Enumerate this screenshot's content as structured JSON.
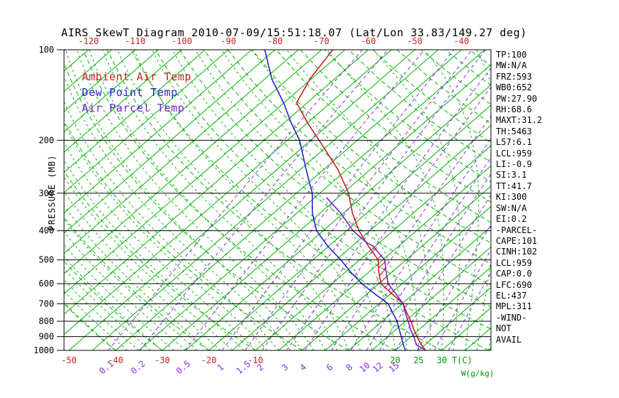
{
  "window": {
    "title": "AIRS SkewT Diagram 2010-07-09/15:51:18.07 (Lat/Lon 33.83/149.27 deg)"
  },
  "legend": {
    "items": [
      {
        "label": "Ambient Air Temp",
        "color": "#cc2020"
      },
      {
        "label": "Dew Point Temp",
        "color": "#2323cc"
      },
      {
        "label": "Air Parcel Temp",
        "color": "#7a1fcc"
      }
    ]
  },
  "axes": {
    "pressure_label": "PRESSURE (MB)",
    "pressure_ticks": [
      100,
      200,
      300,
      400,
      500,
      600,
      700,
      800,
      900,
      1000
    ],
    "top_temp_ticks_c": [
      -120,
      -110,
      -100,
      -90,
      -80,
      -70,
      -60,
      -50,
      -40
    ],
    "bottom_temp_ticks_c": [
      -50,
      -40,
      -30,
      -20,
      -10
    ],
    "bottom_warm_ticks_c": [
      20,
      25,
      30
    ],
    "mixing_ratio_ticks_gkg": [
      0.1,
      0.2,
      0.5,
      1,
      1.5,
      2,
      3,
      4,
      6,
      8,
      10,
      12,
      15
    ],
    "temp_unit_label": "T(C)",
    "mixing_unit_label": "W(g/kg)"
  },
  "stats_panel": {
    "lines": [
      "TP:100",
      "MW:N/A",
      "FRZ:593",
      "WB0:652",
      "PW:27.90",
      "RH:68.6",
      "MAXT:31.2",
      "TH:5463",
      "L57:6.1",
      "LCL:959",
      "LI:-0.9",
      "SI:3.1",
      "TT:41.7",
      "KI:300",
      "SW:N/A",
      "EI:0.2",
      "-PARCEL-",
      "CAPE:101",
      "CINH:102",
      "LCL:959",
      "CAP:0.0",
      "LFC:690",
      "EL:437",
      "MPL:311",
      "-WIND-",
      "NOT",
      "AVAIL"
    ]
  },
  "chart_data": {
    "type": "line",
    "title": "AIRS SkewT Diagram 2010-07-09/15:51:18.07 (Lat/Lon 33.83/149.27 deg)",
    "x_axis": {
      "label": "T(C)",
      "skewed": true,
      "bottom_range_c": [
        -51,
        41
      ]
    },
    "y_axis": {
      "label": "PRESSURE (MB)",
      "scale": "log",
      "range_mb": [
        100,
        1000
      ]
    },
    "grid": {
      "isotherm_step_c": 5,
      "isotherm_range_c": [
        -125,
        45
      ],
      "dry_adiabat_theta_c": [
        -40,
        190,
        10
      ],
      "moist_adiabat_t0_c": [
        -40,
        40,
        2.5
      ],
      "isotherm_color": "#00b400",
      "mixing_ratio_color": "#8a2be2",
      "mixing_ratio_lines_gkg": [
        0.1,
        0.2,
        0.5,
        1,
        1.5,
        2,
        3,
        4,
        6,
        8,
        10,
        12,
        15,
        20,
        25,
        30
      ]
    },
    "series": [
      {
        "name": "Ambient Air Temp",
        "color": "#cc2020",
        "points_p_mb_t_c": [
          [
            1000,
            26.5
          ],
          [
            950,
            23.8
          ],
          [
            900,
            21.3
          ],
          [
            850,
            18.7
          ],
          [
            800,
            16.2
          ],
          [
            750,
            13.2
          ],
          [
            700,
            10.2
          ],
          [
            650,
            5.5
          ],
          [
            600,
            0.5
          ],
          [
            550,
            -2.8
          ],
          [
            500,
            -6.0
          ],
          [
            450,
            -11.5
          ],
          [
            400,
            -17.3
          ],
          [
            350,
            -23.0
          ],
          [
            300,
            -28.8
          ],
          [
            250,
            -37.0
          ],
          [
            200,
            -48.2
          ],
          [
            175,
            -55.0
          ],
          [
            150,
            -62.3
          ],
          [
            125,
            -65.3
          ],
          [
            100,
            -67.6
          ]
        ]
      },
      {
        "name": "Dew Point Temp",
        "color": "#2323cc",
        "points_p_mb_t_c": [
          [
            1000,
            22.2
          ],
          [
            950,
            20.0
          ],
          [
            900,
            17.9
          ],
          [
            850,
            15.6
          ],
          [
            800,
            13.2
          ],
          [
            750,
            10.2
          ],
          [
            700,
            7.0
          ],
          [
            650,
            1.8
          ],
          [
            600,
            -3.6
          ],
          [
            550,
            -8.8
          ],
          [
            500,
            -14.0
          ],
          [
            450,
            -20.2
          ],
          [
            400,
            -26.4
          ],
          [
            350,
            -31.6
          ],
          [
            300,
            -36.6
          ],
          [
            250,
            -43.8
          ],
          [
            200,
            -52.4
          ],
          [
            175,
            -58.5
          ],
          [
            150,
            -65.1
          ],
          [
            125,
            -73.5
          ],
          [
            100,
            -82.2
          ]
        ]
      },
      {
        "name": "Air Parcel Temp",
        "color": "#7a1fcc",
        "points_p_mb_t_c": [
          [
            1000,
            26.5
          ],
          [
            959,
            23.2
          ],
          [
            900,
            20.6
          ],
          [
            850,
            18.0
          ],
          [
            800,
            15.6
          ],
          [
            750,
            12.9
          ],
          [
            700,
            10.2
          ],
          [
            650,
            6.3
          ],
          [
            600,
            2.0
          ],
          [
            550,
            -1.2
          ],
          [
            500,
            -4.6
          ],
          [
            450,
            -10.5
          ],
          [
            437,
            -12.9
          ],
          [
            400,
            -18.6
          ],
          [
            350,
            -25.5
          ],
          [
            310,
            -32.5
          ]
        ]
      }
    ],
    "cape_hatch": {
      "color": "#cc2020",
      "pressures_mb": [
        640,
        610,
        580,
        550,
        520,
        490,
        465
      ]
    }
  }
}
